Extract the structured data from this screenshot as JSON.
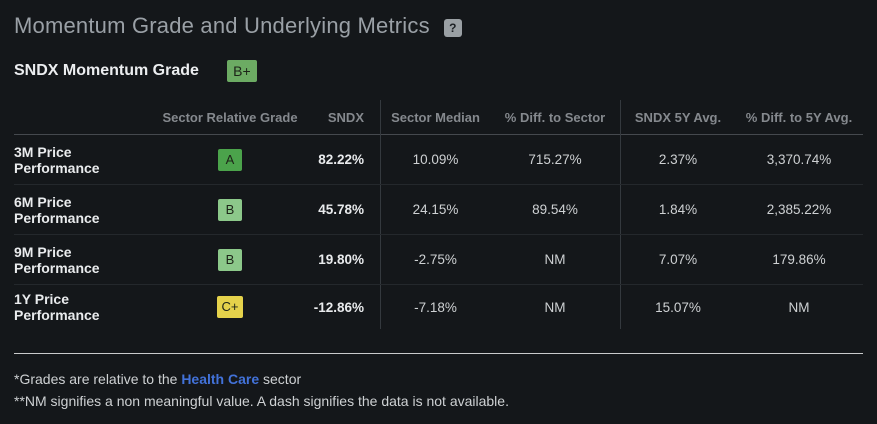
{
  "header": {
    "title": "Momentum Grade and Underlying Metrics",
    "help_icon": "?"
  },
  "subheader": {
    "label": "SNDX Momentum Grade",
    "grade": "B+",
    "grade_color": "#6cab63"
  },
  "table": {
    "columns": {
      "label": "",
      "grade": "Sector Relative Grade",
      "sndx": "SNDX",
      "sector_median": "Sector Median",
      "diff_sector": "% Diff. to Sector",
      "avg_5y": "SNDX 5Y Avg.",
      "diff_5y": "% Diff. to 5Y Avg."
    },
    "rows": [
      {
        "label": "3M Price Performance",
        "grade": "A",
        "grade_color": "#4ba34b",
        "sndx": "82.22%",
        "sector_median": "10.09%",
        "diff_sector": "715.27%",
        "avg_5y": "2.37%",
        "diff_5y": "3,370.74%"
      },
      {
        "label": "6M Price Performance",
        "grade": "B",
        "grade_color": "#8cc88a",
        "sndx": "45.78%",
        "sector_median": "24.15%",
        "diff_sector": "89.54%",
        "avg_5y": "1.84%",
        "diff_5y": "2,385.22%"
      },
      {
        "label": "9M Price Performance",
        "grade": "B",
        "grade_color": "#8cc88a",
        "sndx": "19.80%",
        "sector_median": "-2.75%",
        "diff_sector": "NM",
        "avg_5y": "7.07%",
        "diff_5y": "179.86%"
      },
      {
        "label": "1Y Price Performance",
        "grade": "C+",
        "grade_color": "#e5d24b",
        "sndx": "-12.86%",
        "sector_median": "-7.18%",
        "diff_sector": "NM",
        "avg_5y": "15.07%",
        "diff_5y": "NM"
      }
    ]
  },
  "footnotes": {
    "line1_prefix": "*Grades are relative to the ",
    "line1_link": "Health Care",
    "line1_suffix": " sector",
    "line2": "**NM signifies a non meaningful value. A dash signifies the data is not available."
  },
  "colors": {
    "link_blue": "#4272d9",
    "background": "#14171a"
  }
}
